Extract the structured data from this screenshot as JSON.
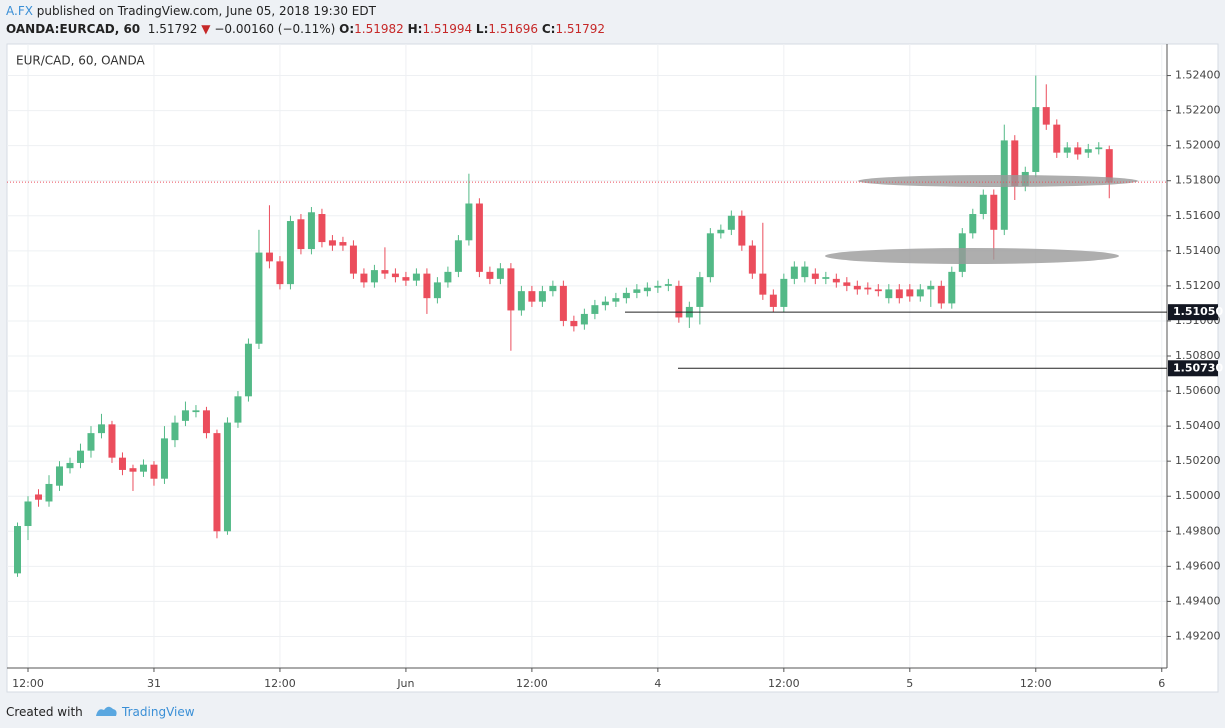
{
  "header": {
    "author": "A.FX",
    "published": "published on TradingView.com, June 05, 2018 19:30 EDT",
    "symbol": "OANDA:EURCAD, 60",
    "last": "1.51792",
    "arrow": "▼",
    "change": "−0.00160 (−0.11%)",
    "open_label": "O:",
    "open": "1.51982",
    "high_label": "H:",
    "high": "1.51994",
    "low_label": "L:",
    "low": "1.51696",
    "close_label": "C:",
    "close": "1.51792"
  },
  "footer": {
    "created": "Created with",
    "brand": "TradingView"
  },
  "chart_data": {
    "type": "candlestick",
    "title": "EUR/CAD, 60, OANDA",
    "up_color": "#53b987",
    "down_color": "#eb4d5c",
    "grid": true,
    "x": [
      0,
      1,
      2,
      3,
      4,
      5,
      6,
      7,
      8,
      9,
      10,
      11,
      12,
      13,
      14,
      15,
      16,
      17,
      18,
      19,
      20,
      21,
      22,
      23,
      24,
      25,
      26,
      27,
      28,
      29,
      30,
      31,
      32,
      33,
      34,
      35,
      36,
      37,
      38,
      39,
      40,
      41,
      42,
      43,
      44,
      45,
      46,
      47,
      48,
      49,
      50,
      51,
      52,
      53,
      54,
      55,
      56,
      57,
      58,
      59,
      60,
      61,
      62,
      63,
      64,
      65,
      66,
      67,
      68,
      69,
      70,
      71,
      72,
      73,
      74,
      75,
      76,
      77,
      78,
      79,
      80,
      81,
      82,
      83,
      84,
      85,
      86,
      87,
      88,
      89,
      90,
      91,
      92,
      93,
      94,
      95,
      96,
      97,
      98,
      99,
      100,
      101,
      102,
      103,
      104
    ],
    "open": [
      1.4956,
      1.4983,
      1.5001,
      1.4997,
      1.5006,
      1.5016,
      1.5019,
      1.5026,
      1.5036,
      1.5041,
      1.5022,
      1.5016,
      1.5014,
      1.5018,
      1.501,
      1.5032,
      1.5043,
      1.5048,
      1.5049,
      1.5036,
      1.498,
      1.5042,
      1.5057,
      1.5087,
      1.5139,
      1.5134,
      1.5121,
      1.5158,
      1.5141,
      1.5161,
      1.5146,
      1.5145,
      1.5143,
      1.5127,
      1.5122,
      1.5129,
      1.5127,
      1.5125,
      1.5123,
      1.5127,
      1.5113,
      1.5122,
      1.5128,
      1.5146,
      1.5167,
      1.5128,
      1.5124,
      1.513,
      1.5106,
      1.5117,
      1.5111,
      1.5117,
      1.512,
      1.51,
      1.5098,
      1.5104,
      1.5109,
      1.5111,
      1.5113,
      1.5116,
      1.5117,
      1.5119,
      1.512,
      1.512,
      1.5102,
      1.5108,
      1.5125,
      1.515,
      1.5152,
      1.516,
      1.5143,
      1.5127,
      1.5115,
      1.5108,
      1.5124,
      1.5125,
      1.5127,
      1.5124,
      1.5124,
      1.5122,
      1.512,
      1.5119,
      1.5118,
      1.5113,
      1.5118,
      1.5118,
      1.5114,
      1.5118,
      1.512,
      1.511,
      1.5128,
      1.515,
      1.5161,
      1.5172,
      1.5152,
      1.5203,
      1.5177,
      1.5185,
      1.5222,
      1.5212,
      1.5196,
      1.5199,
      1.5196,
      1.5198,
      1.5198
    ],
    "high": [
      1.4985,
      1.5,
      1.5004,
      1.5012,
      1.502,
      1.5022,
      1.503,
      1.504,
      1.5047,
      1.5043,
      1.5025,
      1.5018,
      1.5021,
      1.502,
      1.504,
      1.5046,
      1.5054,
      1.5052,
      1.5051,
      1.5038,
      1.5045,
      1.506,
      1.509,
      1.5152,
      1.5166,
      1.5137,
      1.516,
      1.5161,
      1.5165,
      1.5164,
      1.5149,
      1.5148,
      1.5146,
      1.513,
      1.5132,
      1.5142,
      1.513,
      1.5128,
      1.513,
      1.513,
      1.5125,
      1.5131,
      1.5149,
      1.5184,
      1.517,
      1.5131,
      1.5133,
      1.5133,
      1.512,
      1.512,
      1.512,
      1.5123,
      1.5123,
      1.5103,
      1.5107,
      1.5112,
      1.5114,
      1.5116,
      1.5119,
      1.5121,
      1.5122,
      1.5123,
      1.5124,
      1.5123,
      1.5111,
      1.5128,
      1.5153,
      1.5155,
      1.5163,
      1.5163,
      1.5146,
      1.5156,
      1.5118,
      1.5127,
      1.5134,
      1.5134,
      1.513,
      1.5128,
      1.5127,
      1.5125,
      1.5123,
      1.5122,
      1.5121,
      1.5121,
      1.5121,
      1.5121,
      1.5121,
      1.5123,
      1.5123,
      1.5131,
      1.5153,
      1.5164,
      1.5175,
      1.5175,
      1.5212,
      1.5206,
      1.5188,
      1.524,
      1.5235,
      1.5215,
      1.5202,
      1.5202,
      1.5201,
      1.5202,
      1.52
    ],
    "low": [
      1.4954,
      1.4975,
      1.4994,
      1.4994,
      1.5003,
      1.5013,
      1.5016,
      1.5022,
      1.5033,
      1.5019,
      1.5012,
      1.5003,
      1.5011,
      1.5006,
      1.5007,
      1.5028,
      1.504,
      1.5045,
      1.5033,
      1.4976,
      1.4978,
      1.5039,
      1.5054,
      1.5084,
      1.513,
      1.5118,
      1.5118,
      1.5138,
      1.5138,
      1.5142,
      1.514,
      1.514,
      1.5124,
      1.5119,
      1.5119,
      1.5124,
      1.5122,
      1.512,
      1.512,
      1.5104,
      1.511,
      1.5119,
      1.5125,
      1.5143,
      1.5125,
      1.5121,
      1.5121,
      1.5083,
      1.5103,
      1.5108,
      1.5108,
      1.5114,
      1.5097,
      1.5094,
      1.5095,
      1.5101,
      1.5106,
      1.5108,
      1.511,
      1.5113,
      1.5114,
      1.5116,
      1.5117,
      1.5099,
      1.5096,
      1.5098,
      1.5122,
      1.5147,
      1.5149,
      1.514,
      1.5124,
      1.5112,
      1.5105,
      1.5105,
      1.5121,
      1.5122,
      1.5121,
      1.5121,
      1.5119,
      1.5117,
      1.5115,
      1.5115,
      1.5114,
      1.511,
      1.511,
      1.5111,
      1.5111,
      1.5108,
      1.5107,
      1.5107,
      1.5125,
      1.5147,
      1.5158,
      1.5135,
      1.5149,
      1.5169,
      1.5174,
      1.5182,
      1.5209,
      1.5193,
      1.5193,
      1.5192,
      1.5193,
      1.5195,
      1.517
    ],
    "close": [
      1.4983,
      1.4997,
      1.4998,
      1.5007,
      1.5017,
      1.5019,
      1.5026,
      1.5036,
      1.5041,
      1.5022,
      1.5015,
      1.5014,
      1.5018,
      1.501,
      1.5033,
      1.5042,
      1.5049,
      1.5049,
      1.5036,
      1.498,
      1.5042,
      1.5057,
      1.5087,
      1.5139,
      1.5134,
      1.5121,
      1.5157,
      1.5141,
      1.5162,
      1.5145,
      1.5143,
      1.5143,
      1.5127,
      1.5122,
      1.5129,
      1.5127,
      1.5125,
      1.5123,
      1.5127,
      1.5113,
      1.5122,
      1.5128,
      1.5146,
      1.5167,
      1.5128,
      1.5124,
      1.513,
      1.5106,
      1.5117,
      1.5111,
      1.5117,
      1.512,
      1.51,
      1.5097,
      1.5104,
      1.5109,
      1.5111,
      1.5113,
      1.5116,
      1.5118,
      1.5119,
      1.512,
      1.5121,
      1.5102,
      1.5108,
      1.5125,
      1.515,
      1.5152,
      1.516,
      1.5143,
      1.5127,
      1.5115,
      1.5108,
      1.5124,
      1.5131,
      1.5131,
      1.5124,
      1.5125,
      1.5122,
      1.512,
      1.5118,
      1.5118,
      1.5117,
      1.5118,
      1.5113,
      1.5114,
      1.5118,
      1.512,
      1.511,
      1.5128,
      1.515,
      1.5161,
      1.5172,
      1.5152,
      1.5203,
      1.5177,
      1.5185,
      1.5222,
      1.5212,
      1.5196,
      1.5199,
      1.5195,
      1.5198,
      1.5199,
      1.5179
    ],
    "xlim": [
      -1,
      109.5
    ],
    "xticks": [
      {
        "value": 1,
        "label": "12:00"
      },
      {
        "value": 13,
        "label": "31"
      },
      {
        "value": 25,
        "label": "12:00"
      },
      {
        "value": 37,
        "label": "Jun"
      },
      {
        "value": 49,
        "label": "12:00"
      },
      {
        "value": 61,
        "label": "4"
      },
      {
        "value": 73,
        "label": "12:00"
      },
      {
        "value": 85,
        "label": "5"
      },
      {
        "value": 97,
        "label": "12:00"
      },
      {
        "value": 109,
        "label": "6"
      }
    ],
    "ylim": [
      1.4902,
      1.5258
    ],
    "yticks": [
      {
        "value": 1.492,
        "label": "1.49200"
      },
      {
        "value": 1.494,
        "label": "1.49400"
      },
      {
        "value": 1.496,
        "label": "1.49600"
      },
      {
        "value": 1.498,
        "label": "1.49800"
      },
      {
        "value": 1.5,
        "label": "1.50000"
      },
      {
        "value": 1.502,
        "label": "1.50200"
      },
      {
        "value": 1.504,
        "label": "1.50400"
      },
      {
        "value": 1.506,
        "label": "1.50600"
      },
      {
        "value": 1.508,
        "label": "1.50800"
      },
      {
        "value": 1.51,
        "label": "1.51000"
      },
      {
        "value": 1.512,
        "label": "1.51200"
      },
      {
        "value": 1.514,
        "label": "1.51400"
      },
      {
        "value": 1.516,
        "label": "1.51600"
      },
      {
        "value": 1.518,
        "label": "1.51800"
      },
      {
        "value": 1.52,
        "label": "1.52000"
      },
      {
        "value": 1.522,
        "label": "1.52200"
      },
      {
        "value": 1.524,
        "label": "1.52400"
      }
    ],
    "current_price": 1.51792,
    "levels": [
      {
        "value": 1.5105,
        "label": "1.51050"
      },
      {
        "value": 1.5073,
        "label": "1.50730"
      }
    ]
  }
}
